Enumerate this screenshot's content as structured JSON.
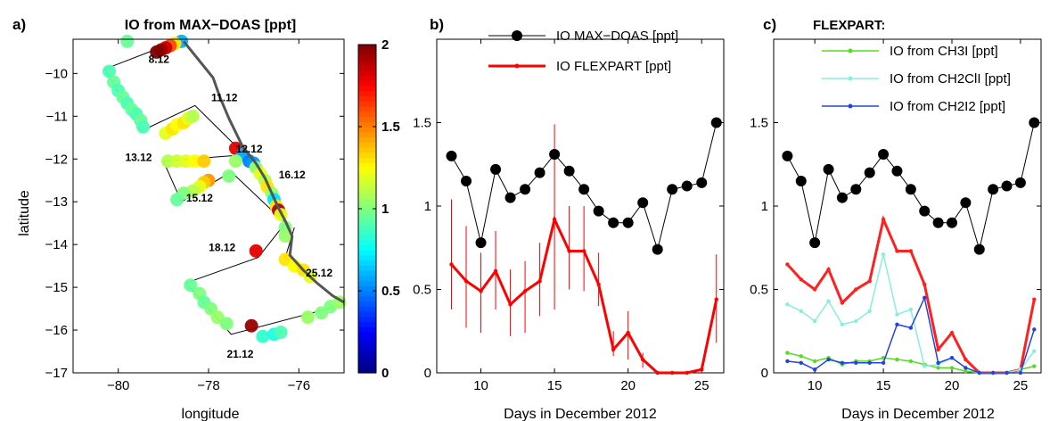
{
  "chart_data": [
    {
      "panel": "a)",
      "type": "scatter",
      "title": "IO from MAX−DOAS [ppt]",
      "xlabel": "longitude",
      "ylabel": "latitude",
      "xlim": [
        -81,
        -75
      ],
      "ylim": [
        -17,
        -9.2
      ],
      "xticks": [
        -80,
        -78,
        -76
      ],
      "yticks": [
        -10,
        -11,
        -12,
        -13,
        -14,
        -15,
        -16,
        -17
      ],
      "xtick_labels": [
        "−80",
        "−78",
        "−76"
      ],
      "ytick_labels": [
        "−10",
        "−11",
        "−12",
        "−13",
        "−14",
        "−15",
        "−16",
        "−17"
      ],
      "colorbar": {
        "min": 0,
        "max": 2,
        "ticks": [
          0,
          0.5,
          1,
          1.5,
          2
        ],
        "tick_labels": [
          "0",
          "0.5",
          "1",
          "1.5",
          "2"
        ],
        "colormap": "jet"
      },
      "points": [
        {
          "x": -78.6,
          "y": -9.25,
          "v": 0.6
        },
        {
          "x": -78.75,
          "y": -9.3,
          "v": 1.3
        },
        {
          "x": -78.85,
          "y": -9.35,
          "v": 1.6
        },
        {
          "x": -78.95,
          "y": -9.4,
          "v": 1.85
        },
        {
          "x": -79.05,
          "y": -9.45,
          "v": 1.95
        },
        {
          "x": -79.15,
          "y": -9.5,
          "v": 2.0
        },
        {
          "x": -79.8,
          "y": -9.25,
          "v": 0.95
        },
        {
          "x": -80.2,
          "y": -9.95,
          "v": 0.9
        },
        {
          "x": -80.1,
          "y": -10.2,
          "v": 0.95
        },
        {
          "x": -80.0,
          "y": -10.4,
          "v": 0.9
        },
        {
          "x": -79.9,
          "y": -10.55,
          "v": 0.95
        },
        {
          "x": -79.8,
          "y": -10.7,
          "v": 0.9
        },
        {
          "x": -79.7,
          "y": -10.85,
          "v": 0.95
        },
        {
          "x": -79.6,
          "y": -10.95,
          "v": 0.9
        },
        {
          "x": -79.5,
          "y": -11.1,
          "v": 0.95
        },
        {
          "x": -79.45,
          "y": -11.25,
          "v": 0.9
        },
        {
          "x": -78.95,
          "y": -11.4,
          "v": 1.2
        },
        {
          "x": -78.8,
          "y": -11.3,
          "v": 1.3
        },
        {
          "x": -78.7,
          "y": -11.2,
          "v": 1.25
        },
        {
          "x": -78.55,
          "y": -11.15,
          "v": 1.3
        },
        {
          "x": -78.45,
          "y": -11.05,
          "v": 1.2
        },
        {
          "x": -78.35,
          "y": -11.0,
          "v": 1.1
        },
        {
          "x": -77.4,
          "y": -11.75,
          "v": 1.8
        },
        {
          "x": -77.25,
          "y": -11.9,
          "v": 0.6
        },
        {
          "x": -77.1,
          "y": -12.05,
          "v": 0.5
        },
        {
          "x": -77.0,
          "y": -12.1,
          "v": 0.55
        },
        {
          "x": -78.9,
          "y": -12.05,
          "v": 1.1
        },
        {
          "x": -78.7,
          "y": -12.05,
          "v": 1.15
        },
        {
          "x": -78.5,
          "y": -12.05,
          "v": 1.2
        },
        {
          "x": -78.3,
          "y": -12.05,
          "v": 1.25
        },
        {
          "x": -78.1,
          "y": -12.05,
          "v": 1.35
        },
        {
          "x": -77.4,
          "y": -12.05,
          "v": 1.05
        },
        {
          "x": -76.95,
          "y": -12.2,
          "v": 1.05
        },
        {
          "x": -76.85,
          "y": -12.35,
          "v": 1.2
        },
        {
          "x": -76.75,
          "y": -12.5,
          "v": 1.1
        },
        {
          "x": -76.7,
          "y": -12.65,
          "v": 1.3
        },
        {
          "x": -76.6,
          "y": -12.8,
          "v": 1.05
        },
        {
          "x": -76.55,
          "y": -12.95,
          "v": 0.7
        },
        {
          "x": -76.5,
          "y": -13.1,
          "v": 1.3
        },
        {
          "x": -76.45,
          "y": -13.2,
          "v": 1.9
        },
        {
          "x": -76.4,
          "y": -13.3,
          "v": 1.2
        },
        {
          "x": -77.55,
          "y": -12.4,
          "v": 1.0
        },
        {
          "x": -78.0,
          "y": -12.5,
          "v": 1.45
        },
        {
          "x": -78.1,
          "y": -12.55,
          "v": 1.35
        },
        {
          "x": -78.2,
          "y": -12.65,
          "v": 1.2
        },
        {
          "x": -78.35,
          "y": -12.75,
          "v": 1.1
        },
        {
          "x": -78.55,
          "y": -12.8,
          "v": 1.0
        },
        {
          "x": -78.7,
          "y": -12.95,
          "v": 0.95
        },
        {
          "x": -76.3,
          "y": -13.6,
          "v": 1.0
        },
        {
          "x": -76.3,
          "y": -13.8,
          "v": 1.05
        },
        {
          "x": -76.95,
          "y": -14.15,
          "v": 1.8
        },
        {
          "x": -76.3,
          "y": -14.35,
          "v": 1.3
        },
        {
          "x": -76.1,
          "y": -14.5,
          "v": 1.25
        },
        {
          "x": -75.9,
          "y": -14.6,
          "v": 1.3
        },
        {
          "x": -75.75,
          "y": -14.75,
          "v": 1.2
        },
        {
          "x": -78.4,
          "y": -14.95,
          "v": 0.95
        },
        {
          "x": -78.2,
          "y": -15.15,
          "v": 1.0
        },
        {
          "x": -78.1,
          "y": -15.35,
          "v": 0.95
        },
        {
          "x": -77.95,
          "y": -15.5,
          "v": 1.0
        },
        {
          "x": -77.8,
          "y": -15.7,
          "v": 1.05
        },
        {
          "x": -77.6,
          "y": -15.85,
          "v": 1.0
        },
        {
          "x": -77.05,
          "y": -15.9,
          "v": 1.95
        },
        {
          "x": -76.8,
          "y": -16.15,
          "v": 0.85
        },
        {
          "x": -76.55,
          "y": -16.1,
          "v": 0.8
        },
        {
          "x": -76.4,
          "y": -16.05,
          "v": 0.9
        },
        {
          "x": -75.8,
          "y": -15.7,
          "v": 1.05
        },
        {
          "x": -75.5,
          "y": -15.6,
          "v": 1.0
        },
        {
          "x": -75.3,
          "y": -15.45,
          "v": 1.0
        },
        {
          "x": -75.1,
          "y": -15.35,
          "v": 1.05
        }
      ],
      "cruise_track": [
        [
          -79.2,
          -9.45
        ],
        [
          -80.3,
          -9.9
        ],
        [
          -79.5,
          -11.35
        ],
        [
          -78.3,
          -10.75
        ],
        [
          -77.2,
          -11.9
        ],
        [
          -79.0,
          -12.05
        ],
        [
          -78.6,
          -13.0
        ],
        [
          -77.5,
          -12.3
        ],
        [
          -76.3,
          -13.5
        ],
        [
          -76.9,
          -14.3
        ],
        [
          -78.5,
          -14.9
        ],
        [
          -77.5,
          -16.1
        ],
        [
          -75.0,
          -15.4
        ],
        [
          -76.3,
          -14.3
        ],
        [
          -76.1,
          -13.6
        ]
      ],
      "coastline": [
        [
          -78.55,
          -9.25
        ],
        [
          -77.9,
          -10.1
        ],
        [
          -77.75,
          -10.55
        ],
        [
          -77.55,
          -11.05
        ],
        [
          -77.25,
          -11.7
        ],
        [
          -76.95,
          -12.1
        ],
        [
          -76.75,
          -12.45
        ],
        [
          -76.6,
          -12.8
        ],
        [
          -76.45,
          -13.15
        ],
        [
          -76.3,
          -13.45
        ],
        [
          -76.15,
          -13.8
        ],
        [
          -76.2,
          -14.25
        ],
        [
          -75.9,
          -14.6
        ],
        [
          -75.6,
          -14.9
        ],
        [
          -75.25,
          -15.2
        ],
        [
          -75.0,
          -15.35
        ]
      ],
      "annotations": [
        {
          "text": "8.12",
          "x": -79.1,
          "y": -9.75
        },
        {
          "text": "11.12",
          "x": -77.65,
          "y": -10.65
        },
        {
          "text": "12.12",
          "x": -77.1,
          "y": -11.85
        },
        {
          "text": "13.12",
          "x": -79.55,
          "y": -12.05
        },
        {
          "text": "16.12",
          "x": -76.15,
          "y": -12.45
        },
        {
          "text": "15.12",
          "x": -78.2,
          "y": -13.0
        },
        {
          "text": "18.12",
          "x": -77.7,
          "y": -14.15
        },
        {
          "text": "25.12",
          "x": -75.55,
          "y": -14.75
        },
        {
          "text": "21.12",
          "x": -77.3,
          "y": -16.65
        }
      ]
    },
    {
      "panel": "b)",
      "type": "line",
      "xlabel": "Days in December 2012",
      "ylabel": "",
      "xlim": [
        7,
        26.5
      ],
      "ylim": [
        0,
        2
      ],
      "xticks": [
        10,
        15,
        20,
        25
      ],
      "yticks": [
        0,
        0.5,
        1,
        1.5
      ],
      "x": [
        8,
        9,
        10,
        11,
        12,
        13,
        14,
        15,
        16,
        17,
        18,
        19,
        20,
        21,
        22,
        23,
        24,
        25,
        26
      ],
      "series": [
        {
          "name": "IO MAX−DOAS [ppt]",
          "color": "#000000",
          "marker": "large",
          "values": [
            1.3,
            1.15,
            0.78,
            1.22,
            1.05,
            1.1,
            1.2,
            1.31,
            1.21,
            1.1,
            0.97,
            0.9,
            0.9,
            1.02,
            0.74,
            1.1,
            1.12,
            1.14,
            1.5
          ]
        },
        {
          "name": "IO FLEXPART [ppt]",
          "color": "#ff0000",
          "marker": "small",
          "values": [
            0.65,
            0.55,
            0.49,
            0.61,
            0.41,
            0.49,
            0.55,
            0.92,
            0.73,
            0.73,
            0.53,
            0.14,
            0.24,
            0.08,
            0.0,
            0.0,
            0.0,
            0.02,
            0.44
          ],
          "error_low": [
            0.38,
            0.27,
            0.24,
            0.38,
            0.22,
            0.24,
            0.34,
            0.38,
            0.5,
            0.49,
            0.4,
            0.1,
            0.08,
            0.03,
            0.0,
            0.0,
            0.0,
            0.0,
            0.18
          ],
          "error_high": [
            1.04,
            0.88,
            0.72,
            0.85,
            0.62,
            0.67,
            0.78,
            1.49,
            1.0,
            1.0,
            0.72,
            0.25,
            0.37,
            0.12,
            0.0,
            0.0,
            0.0,
            0.05,
            0.71
          ]
        }
      ]
    },
    {
      "panel": "c)",
      "type": "line",
      "legend_title": "FLEXPART:",
      "xlabel": "Days in December 2012",
      "ylabel": "",
      "xlim": [
        7,
        26.5
      ],
      "ylim": [
        0,
        2
      ],
      "xticks": [
        10,
        15,
        20,
        25
      ],
      "yticks": [
        0,
        0.5,
        1,
        1.5
      ],
      "x": [
        8,
        9,
        10,
        11,
        12,
        13,
        14,
        15,
        16,
        17,
        18,
        19,
        20,
        21,
        22,
        23,
        24,
        25,
        26
      ],
      "series": [
        {
          "name": "",
          "color": "#000000",
          "marker": "large",
          "values": [
            1.3,
            1.15,
            0.78,
            1.22,
            1.05,
            1.1,
            1.2,
            1.31,
            1.21,
            1.1,
            0.97,
            0.9,
            0.9,
            1.02,
            0.74,
            1.1,
            1.12,
            1.14,
            1.5
          ]
        },
        {
          "name": "",
          "color": "#ff2020",
          "marker": "small",
          "width": 3,
          "values": [
            0.65,
            0.56,
            0.5,
            0.62,
            0.42,
            0.5,
            0.55,
            0.92,
            0.73,
            0.73,
            0.53,
            0.14,
            0.24,
            0.08,
            0.0,
            0.0,
            0.0,
            0.02,
            0.44
          ]
        },
        {
          "name": "IO from CH3I [ppt]",
          "color": "#55dd22",
          "marker": "small",
          "values": [
            0.12,
            0.1,
            0.07,
            0.09,
            0.05,
            0.07,
            0.07,
            0.09,
            0.08,
            0.07,
            0.05,
            0.03,
            0.03,
            0.01,
            0.0,
            0.0,
            0.0,
            0.02,
            0.04
          ]
        },
        {
          "name": "IO from CH2ClI [ppt]",
          "color": "#88eedd",
          "marker": "small",
          "values": [
            0.41,
            0.37,
            0.31,
            0.43,
            0.29,
            0.31,
            0.37,
            0.71,
            0.35,
            0.38,
            0.04,
            0.05,
            0.09,
            0.03,
            0.0,
            0.0,
            0.0,
            0.02,
            0.13
          ]
        },
        {
          "name": "IO from CH2I2 [ppt]",
          "color": "#2244dd",
          "marker": "small",
          "values": [
            0.07,
            0.06,
            0.02,
            0.08,
            0.06,
            0.06,
            0.06,
            0.06,
            0.29,
            0.27,
            0.45,
            0.06,
            0.09,
            0.03,
            0.0,
            0.0,
            0.0,
            0.0,
            0.26
          ]
        }
      ]
    }
  ]
}
